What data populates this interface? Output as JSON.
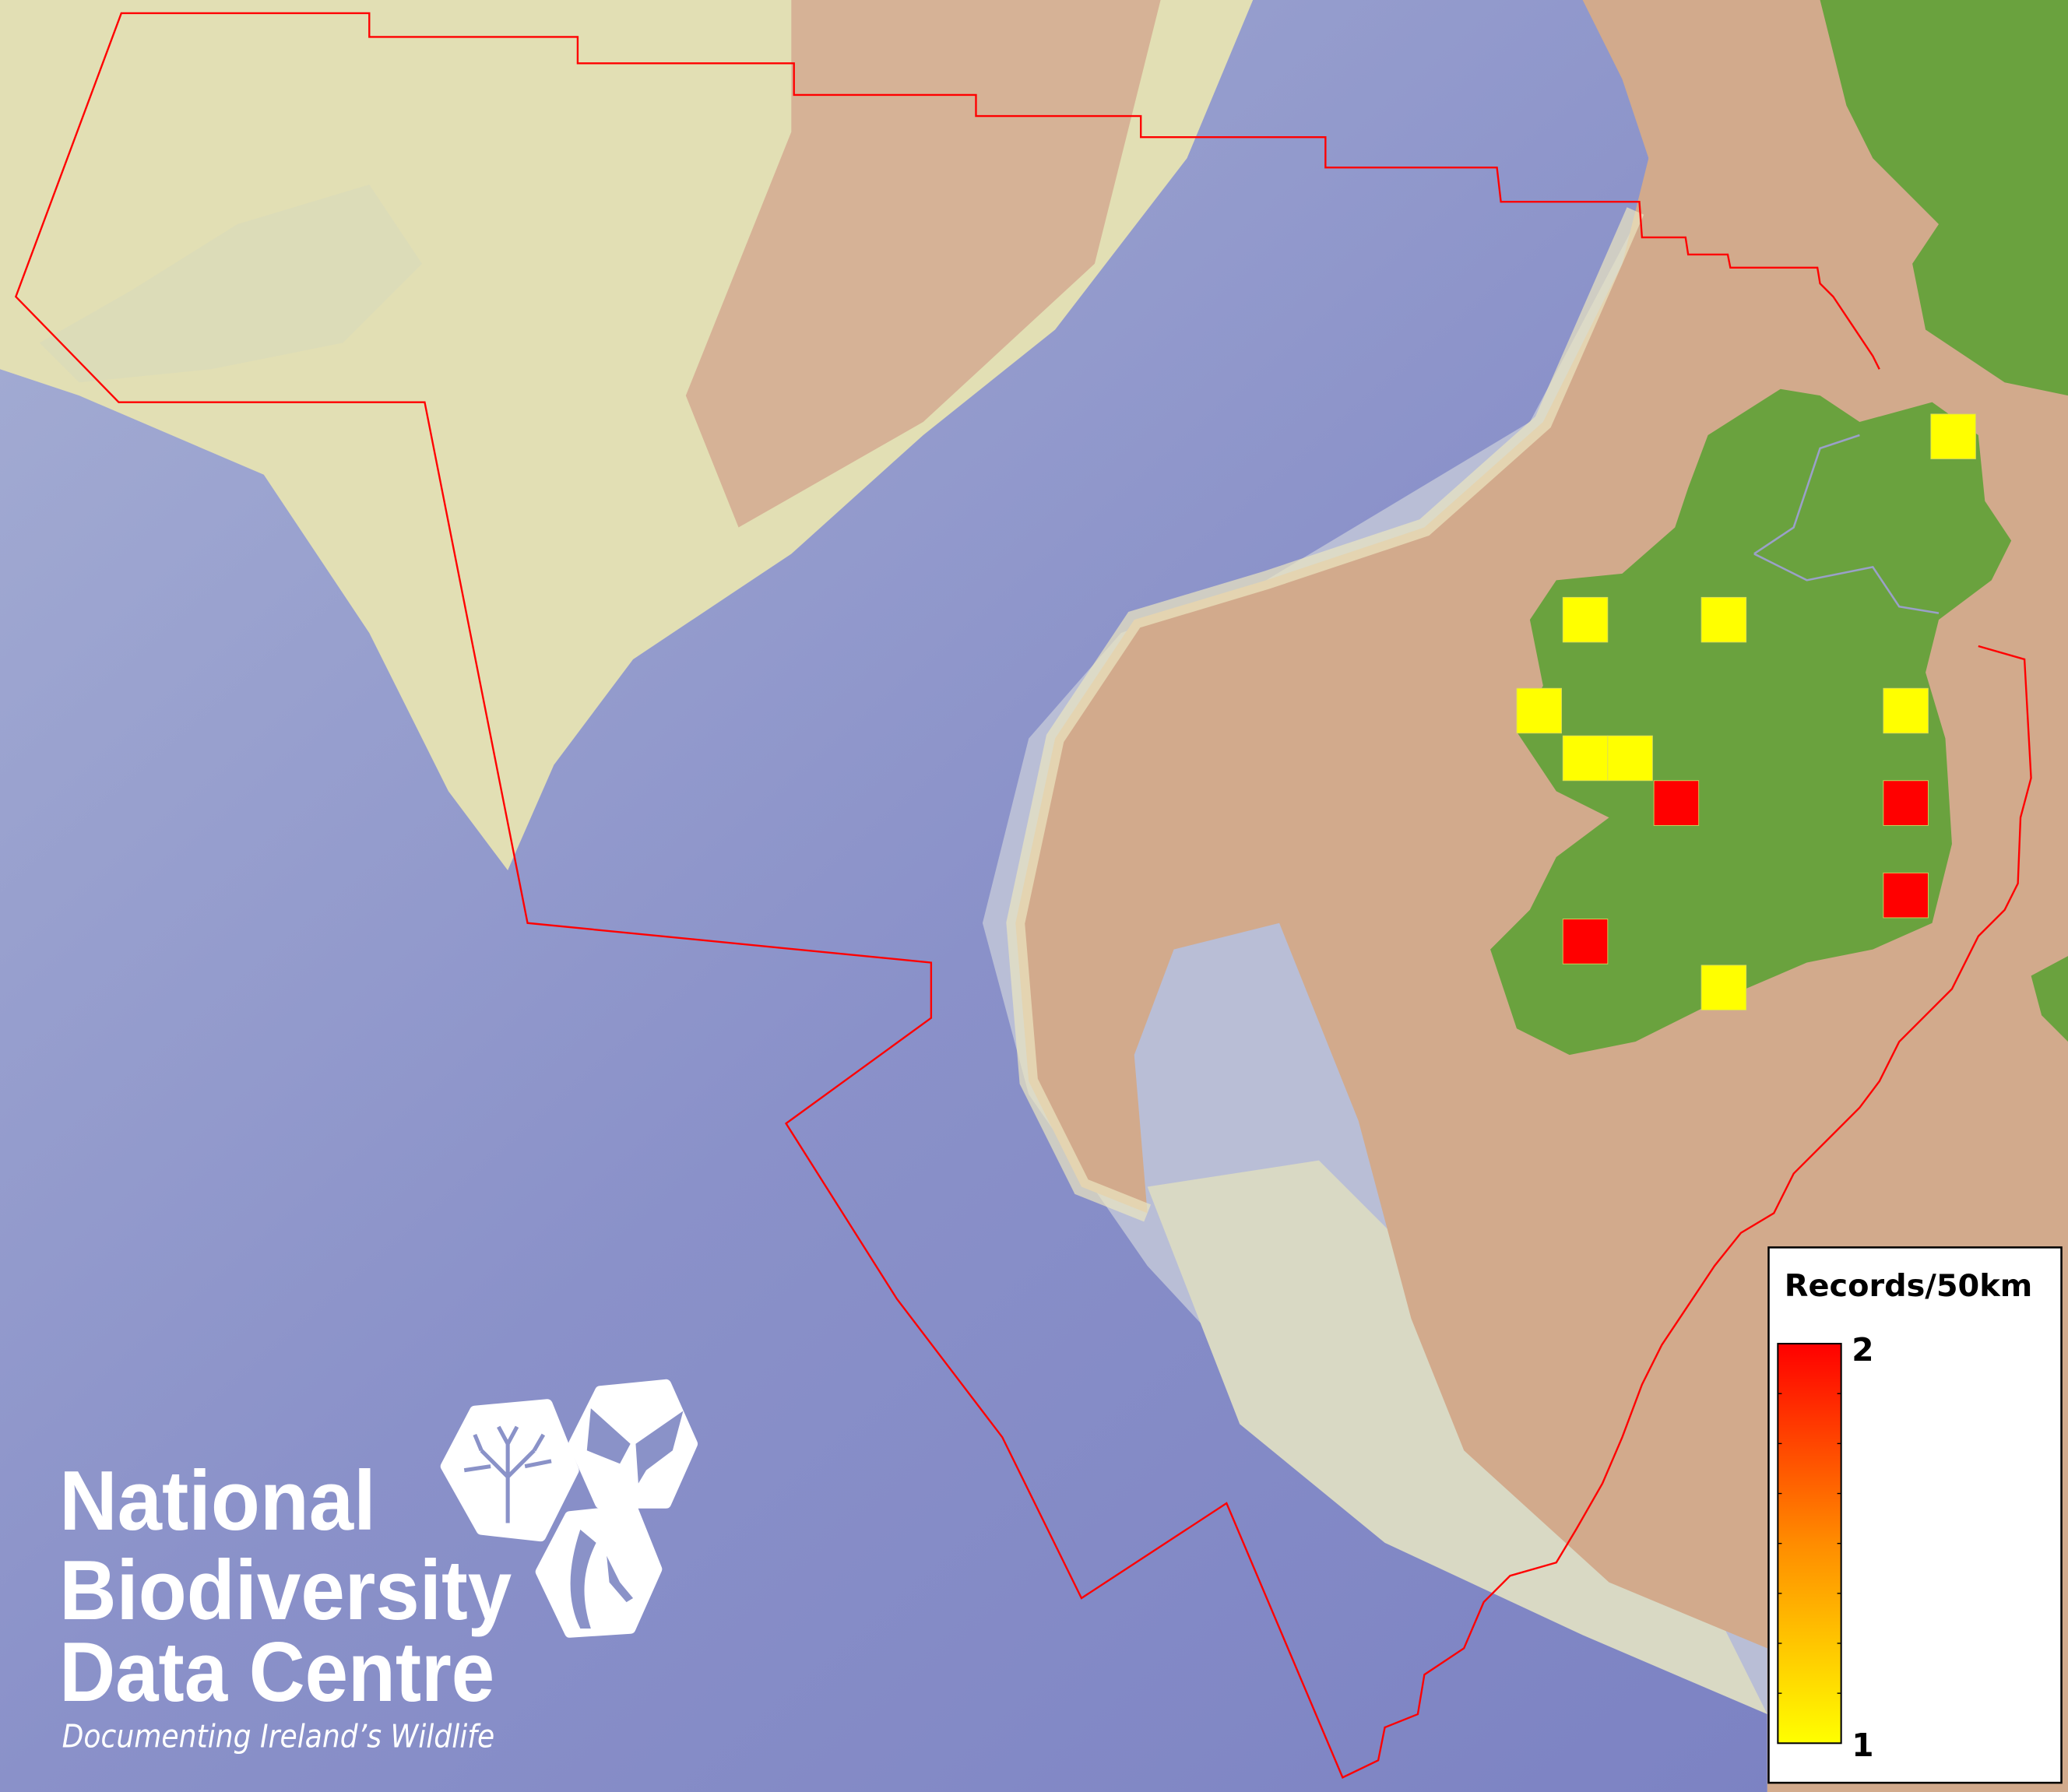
{
  "map": {
    "colors": {
      "deep_sea": "#8088c4",
      "slope": "#b8bdd6",
      "shelf": "#e4e1b2",
      "seabed_plateau": "#d2aa8c",
      "land": "#6aa23e",
      "boundary": "#ff0000",
      "record_low": "#ffff00",
      "record_high": "#ff0000"
    },
    "grid_records": [
      {
        "value": 1
      },
      {
        "value": 1
      },
      {
        "value": 1
      },
      {
        "value": 1
      },
      {
        "value": 1
      },
      {
        "value": 1
      },
      {
        "value": 1
      },
      {
        "value": 2
      },
      {
        "value": 2
      },
      {
        "value": 2
      },
      {
        "value": 2
      },
      {
        "value": 1
      }
    ]
  },
  "legend": {
    "title": "Records/50km",
    "max_label": "2",
    "min_label": "1"
  },
  "logo": {
    "line1": "National",
    "line2": "Biodiversity",
    "line3": "Data Centre",
    "tagline": "Documenting Ireland’s Wildlife",
    "icons": [
      "tree-icon",
      "butterfly-icon",
      "seahorse-icon"
    ]
  }
}
